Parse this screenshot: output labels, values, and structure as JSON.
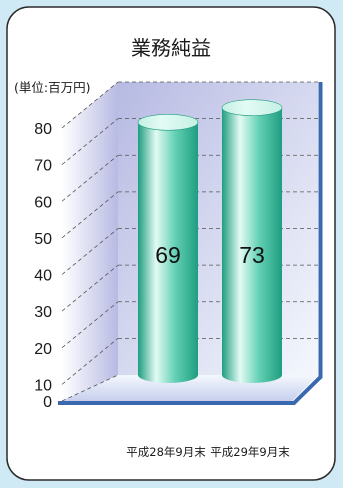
{
  "chart_data": {
    "type": "bar",
    "bar_shape": "3d-cylinder",
    "title": "業務純益",
    "unit_label": "(単位:百万円)",
    "categories": [
      "平成28年9月末",
      "平成29年9月末"
    ],
    "values": [
      69,
      73
    ],
    "ylim": [
      0,
      80
    ],
    "yticks": [
      0,
      10,
      20,
      30,
      40,
      50,
      60,
      70,
      80
    ],
    "grid": true,
    "colors": {
      "page_bg": "#cfe9f5",
      "card_border": "#2b2b2b",
      "frame": "#3b69b0",
      "bar_dark": "#1f9d80",
      "bar_mid": "#63d0b4",
      "bar_light": "#e3fbf4",
      "bar_top": "#c4f0e3",
      "wall_top": "#b7bae2",
      "wall_bottom": "#f4f8fd",
      "floor": "#c7cfee"
    }
  }
}
